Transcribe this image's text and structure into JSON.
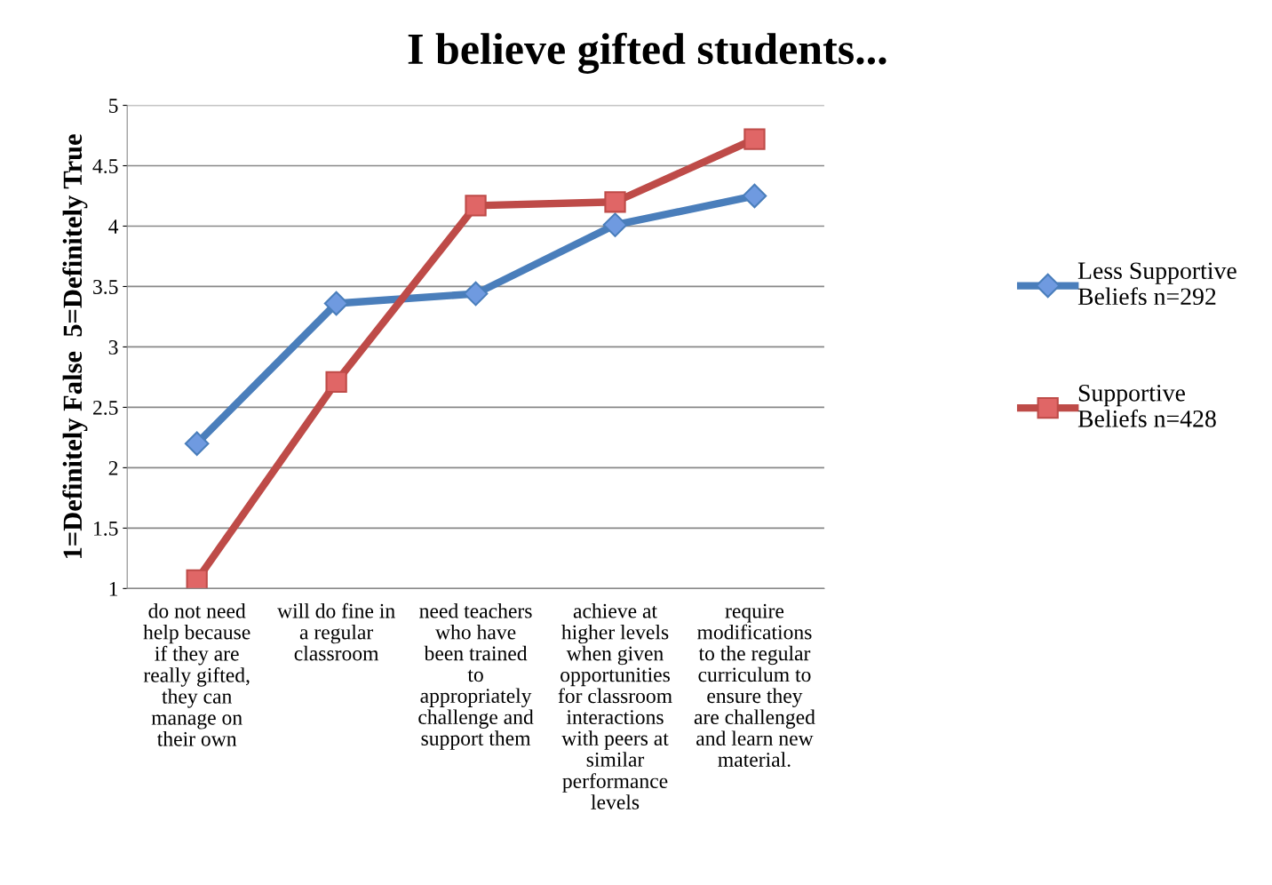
{
  "chart_data": {
    "type": "line",
    "title": "I believe gifted students...",
    "ylabel": "1=Definitely False  5=Definitely True",
    "categories": [
      "do not need\nhelp because\nif they are\nreally gifted,\nthey can\nmanage on\ntheir own",
      "will do fine in\na regular\nclassroom",
      "need teachers\nwho have\nbeen trained\nto\nappropriately\nchallenge and\nsupport them",
      "achieve at\nhigher levels\nwhen given\nopportunities\nfor classroom\ninteractions\nwith peers at\nsimilar\nperformance\nlevels",
      "require\nmodifications\nto the regular\ncurriculum to\nensure they\nare challenged\nand learn new\nmaterial."
    ],
    "series": [
      {
        "name": "Less Supportive\nBeliefs n=292",
        "color": "#4a7ebb",
        "marker": "diamond",
        "values": [
          2.2,
          3.36,
          3.44,
          4.01,
          4.25
        ]
      },
      {
        "name": "Supportive\nBeliefs n=428",
        "color": "#be4b48",
        "marker": "square",
        "values": [
          1.07,
          2.71,
          4.17,
          4.2,
          4.72
        ]
      }
    ],
    "ylim": [
      1,
      5
    ],
    "yticks": [
      1,
      1.5,
      2,
      2.5,
      3,
      3.5,
      4,
      4.5,
      5
    ],
    "grid": "y",
    "legend": "right"
  }
}
